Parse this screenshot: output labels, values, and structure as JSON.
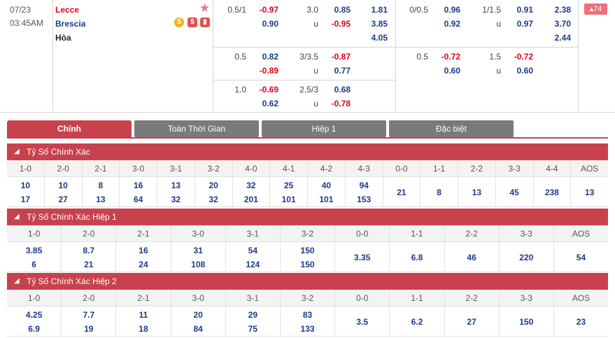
{
  "match": {
    "date": "07/23",
    "time": "03:45AM",
    "home": "Lecce",
    "away": "Brescia",
    "draw": "Hòa",
    "badge_count": "74",
    "icons": [
      "star-icon",
      "coin-icon",
      "dollar-icon",
      "chart-icon"
    ]
  },
  "odds_rows": [
    {
      "hcap": "0.5/1",
      "hcap_home": "-0.97",
      "hcap_away": "0.90",
      "ou": "3.0",
      "ou_over": "0.85",
      "ou_under": "-0.95",
      "ou_u_label": "u",
      "x12_home": "1.81",
      "x12_away": "3.85",
      "x12_draw": "4.05",
      "h1_hcap": "0/0.5",
      "h1_hcap_home": "0.96",
      "h1_hcap_away": "0.92",
      "h1_ou": "1/1.5",
      "h1_ou_over": "0.91",
      "h1_ou_under": "0.97",
      "h1_u_label": "u",
      "h1_x12_home": "2.38",
      "h1_x12_away": "3.70",
      "h1_x12_draw": "2.44"
    },
    {
      "hcap": "0.5",
      "hcap_home": "0.82",
      "hcap_away": "-0.89",
      "ou": "3/3.5",
      "ou_over": "-0.87",
      "ou_under": "0.77",
      "ou_u_label": "u",
      "h1_hcap": "0.5",
      "h1_hcap_home": "-0.72",
      "h1_hcap_away": "0.60",
      "h1_ou": "1.5",
      "h1_ou_over": "-0.72",
      "h1_ou_under": "0.60",
      "h1_u_label": "u"
    },
    {
      "hcap": "1.0",
      "hcap_home": "-0.69",
      "hcap_away": "0.62",
      "ou": "2.5/3",
      "ou_over": "0.68",
      "ou_under": "-0.78",
      "ou_u_label": "u"
    }
  ],
  "tabs": [
    {
      "label": "Chính",
      "active": true
    },
    {
      "label": "Toàn Thời Gian",
      "active": false
    },
    {
      "label": "Hiệp 1",
      "active": false
    },
    {
      "label": "Đặc biệt",
      "active": false
    }
  ],
  "sections": [
    {
      "title": "Tỷ Số Chính Xác",
      "headers": [
        "1-0",
        "2-0",
        "2-1",
        "3-0",
        "3-1",
        "3-2",
        "4-0",
        "4-1",
        "4-2",
        "4-3",
        "0-0",
        "1-1",
        "2-2",
        "3-3",
        "4-4",
        "AOS"
      ],
      "values": [
        [
          "10",
          "17"
        ],
        [
          "10",
          "27"
        ],
        [
          "8",
          "13"
        ],
        [
          "16",
          "64"
        ],
        [
          "13",
          "32"
        ],
        [
          "20",
          "32"
        ],
        [
          "32",
          "201"
        ],
        [
          "25",
          "101"
        ],
        [
          "40",
          "101"
        ],
        [
          "94",
          "153"
        ],
        [
          "21"
        ],
        [
          "8"
        ],
        [
          "13"
        ],
        [
          "45"
        ],
        [
          "238"
        ],
        [
          "13"
        ]
      ]
    },
    {
      "title": "Tỷ Số Chính Xác Hiệp 1",
      "headers": [
        "1-0",
        "2-0",
        "2-1",
        "3-0",
        "3-1",
        "3-2",
        "0-0",
        "1-1",
        "2-2",
        "3-3",
        "AOS"
      ],
      "values": [
        [
          "3.85",
          "6"
        ],
        [
          "8.7",
          "21"
        ],
        [
          "16",
          "24"
        ],
        [
          "31",
          "108"
        ],
        [
          "54",
          "124"
        ],
        [
          "150",
          "150"
        ],
        [
          "3.35"
        ],
        [
          "6.8"
        ],
        [
          "46"
        ],
        [
          "220"
        ],
        [
          "54"
        ]
      ]
    },
    {
      "title": "Tỷ Số Chính Xác Hiệp 2",
      "headers": [
        "1-0",
        "2-0",
        "2-1",
        "3-0",
        "3-1",
        "3-2",
        "0-0",
        "1-1",
        "2-2",
        "3-3",
        "AOS"
      ],
      "values": [
        [
          "4.25",
          "6.9"
        ],
        [
          "7.7",
          "19"
        ],
        [
          "11",
          "18"
        ],
        [
          "20",
          "84"
        ],
        [
          "29",
          "75"
        ],
        [
          "83",
          "133"
        ],
        [
          "3.5"
        ],
        [
          "6.2"
        ],
        [
          "27"
        ],
        [
          "150"
        ],
        [
          "23"
        ]
      ]
    }
  ]
}
